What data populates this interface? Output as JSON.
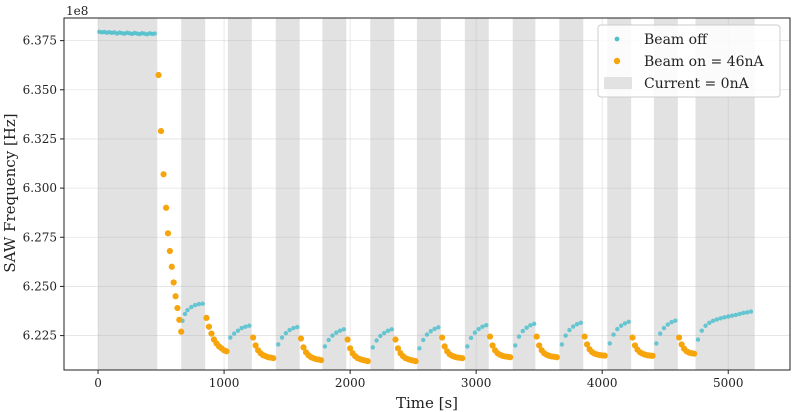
{
  "chart_data": {
    "type": "scatter",
    "xlabel": "Time [s]",
    "ylabel": "SAW Frequency [Hz]",
    "offset_label": "1e8",
    "xlim": [
      -270,
      5490
    ],
    "ylim": [
      6.2075,
      6.3865
    ],
    "xticks": [
      0,
      1000,
      2000,
      3000,
      4000,
      5000
    ],
    "xtick_labels": [
      "0",
      "1000",
      "2000",
      "3000",
      "4000",
      "5000"
    ],
    "yticks": [
      6.225,
      6.25,
      6.275,
      6.3,
      6.325,
      6.35,
      6.375
    ],
    "ytick_labels": [
      "6.225",
      "6.250",
      "6.275",
      "6.300",
      "6.325",
      "6.350",
      "6.375"
    ],
    "grid": true,
    "legend_position": "top-right",
    "legend": [
      {
        "label": "Beam off",
        "kind": "dot",
        "color": "#4fc0cc"
      },
      {
        "label": "Beam on = 46nA",
        "kind": "dot",
        "color": "#f7a50c"
      },
      {
        "label": "Current = 0nA",
        "kind": "band",
        "color": "#e2e2e2"
      }
    ],
    "zero_current_intervals": [
      [
        0,
        470
      ],
      [
        660,
        850
      ],
      [
        1030,
        1220
      ],
      [
        1410,
        1600
      ],
      [
        1780,
        1970
      ],
      [
        2160,
        2350
      ],
      [
        2530,
        2720
      ],
      [
        2910,
        3100
      ],
      [
        3290,
        3470
      ],
      [
        3660,
        3850
      ],
      [
        4040,
        4230
      ],
      [
        4410,
        4600
      ],
      [
        4740,
        5210
      ]
    ],
    "series": [
      {
        "name": "Beam off",
        "color": "#4fc0cc",
        "x": [
          10,
          30,
          50,
          70,
          90,
          110,
          130,
          150,
          170,
          190,
          210,
          230,
          250,
          270,
          290,
          310,
          330,
          350,
          370,
          390,
          410,
          430,
          450,
          670,
          690,
          710,
          740,
          770,
          800,
          830,
          1050,
          1080,
          1110,
          1140,
          1170,
          1200,
          1430,
          1460,
          1490,
          1520,
          1550,
          1580,
          1800,
          1830,
          1860,
          1890,
          1920,
          1950,
          2180,
          2210,
          2240,
          2270,
          2300,
          2330,
          2550,
          2580,
          2610,
          2640,
          2670,
          2700,
          2930,
          2960,
          2990,
          3020,
          3050,
          3080,
          3310,
          3340,
          3370,
          3400,
          3430,
          3460,
          3680,
          3710,
          3740,
          3770,
          3800,
          3830,
          4060,
          4090,
          4120,
          4150,
          4180,
          4210,
          4430,
          4460,
          4490,
          4520,
          4550,
          4580,
          4760,
          4790,
          4820,
          4850,
          4880,
          4910,
          4940,
          4970,
          5000,
          5030,
          5060,
          5090,
          5120,
          5150,
          5180
        ],
        "y": [
          6.3795,
          6.3792,
          6.3794,
          6.379,
          6.3793,
          6.3789,
          6.3792,
          6.3786,
          6.3791,
          6.3788,
          6.3785,
          6.379,
          6.3787,
          6.3784,
          6.3789,
          6.3786,
          6.3783,
          6.3788,
          6.3785,
          6.3782,
          6.3787,
          6.3784,
          6.3786,
          6.2325,
          6.236,
          6.238,
          6.2395,
          6.2405,
          6.241,
          6.2412,
          6.224,
          6.226,
          6.2275,
          6.2288,
          6.2295,
          6.23,
          6.2205,
          6.224,
          6.2262,
          6.2278,
          6.2288,
          6.2293,
          6.2195,
          6.2228,
          6.225,
          6.2265,
          6.2275,
          6.2282,
          6.219,
          6.2225,
          6.2248,
          6.2263,
          6.2274,
          6.2282,
          6.2185,
          6.2228,
          6.2255,
          6.2272,
          6.2284,
          6.2292,
          6.2195,
          6.2238,
          6.2265,
          6.2283,
          6.2295,
          6.2303,
          6.22,
          6.2245,
          6.2273,
          6.229,
          6.2302,
          6.231,
          6.2205,
          6.225,
          6.2278,
          6.2296,
          6.2308,
          6.2315,
          6.221,
          6.2255,
          6.2283,
          6.23,
          6.2312,
          6.232,
          6.221,
          6.226,
          6.2288,
          6.2306,
          6.2318,
          6.2326,
          6.223,
          6.2275,
          6.23,
          6.2315,
          6.2325,
          6.2332,
          6.2338,
          6.2343,
          6.2347,
          6.2351,
          6.2355,
          6.236,
          6.2365,
          6.2368,
          6.2372
        ]
      },
      {
        "name": "Beam on = 46nA",
        "color": "#f7a50c",
        "x": [
          480,
          500,
          520,
          540,
          555,
          570,
          585,
          600,
          615,
          630,
          645,
          660,
          860,
          880,
          900,
          920,
          940,
          960,
          980,
          1000,
          1020,
          1230,
          1250,
          1270,
          1290,
          1310,
          1330,
          1350,
          1370,
          1390,
          1610,
          1630,
          1650,
          1670,
          1690,
          1710,
          1730,
          1750,
          1770,
          1980,
          2000,
          2020,
          2040,
          2060,
          2080,
          2100,
          2120,
          2140,
          2360,
          2380,
          2400,
          2420,
          2440,
          2460,
          2480,
          2500,
          2520,
          2730,
          2750,
          2770,
          2790,
          2810,
          2830,
          2850,
          2870,
          2890,
          3110,
          3130,
          3150,
          3170,
          3190,
          3210,
          3230,
          3250,
          3270,
          3480,
          3500,
          3520,
          3540,
          3560,
          3580,
          3600,
          3620,
          3640,
          3860,
          3880,
          3900,
          3920,
          3940,
          3960,
          3980,
          4000,
          4020,
          4240,
          4260,
          4280,
          4300,
          4320,
          4340,
          4360,
          4380,
          4400,
          4610,
          4630,
          4650,
          4670,
          4690,
          4710,
          4730
        ],
        "y": [
          6.3575,
          6.329,
          6.307,
          6.29,
          6.277,
          6.268,
          6.26,
          6.252,
          6.245,
          6.239,
          6.233,
          6.227,
          6.234,
          6.2295,
          6.226,
          6.223,
          6.221,
          6.2195,
          6.2185,
          6.2175,
          6.217,
          6.224,
          6.22,
          6.2175,
          6.216,
          6.215,
          6.2145,
          6.214,
          6.2138,
          6.2135,
          6.2235,
          6.219,
          6.2165,
          6.215,
          6.214,
          6.2135,
          6.213,
          6.2128,
          6.2125,
          6.223,
          6.2185,
          6.216,
          6.2145,
          6.2135,
          6.213,
          6.2126,
          6.2123,
          6.212,
          6.223,
          6.2185,
          6.216,
          6.2145,
          6.2135,
          6.213,
          6.2126,
          6.2123,
          6.212,
          6.224,
          6.2195,
          6.217,
          6.2155,
          6.2147,
          6.2142,
          6.2139,
          6.2137,
          6.2135,
          6.2245,
          6.22,
          6.2175,
          6.216,
          6.2152,
          6.2147,
          6.2144,
          6.2142,
          6.214,
          6.2245,
          6.22,
          6.2175,
          6.216,
          6.2152,
          6.2147,
          6.2144,
          6.2142,
          6.214,
          6.2245,
          6.2205,
          6.218,
          6.2166,
          6.2158,
          6.2154,
          6.2151,
          6.2149,
          6.2148,
          6.224,
          6.22,
          6.2178,
          6.2165,
          6.2158,
          6.2153,
          6.215,
          6.2148,
          6.2147,
          6.224,
          6.2205,
          6.2183,
          6.217,
          6.2163,
          6.216,
          6.2158
        ]
      }
    ]
  }
}
